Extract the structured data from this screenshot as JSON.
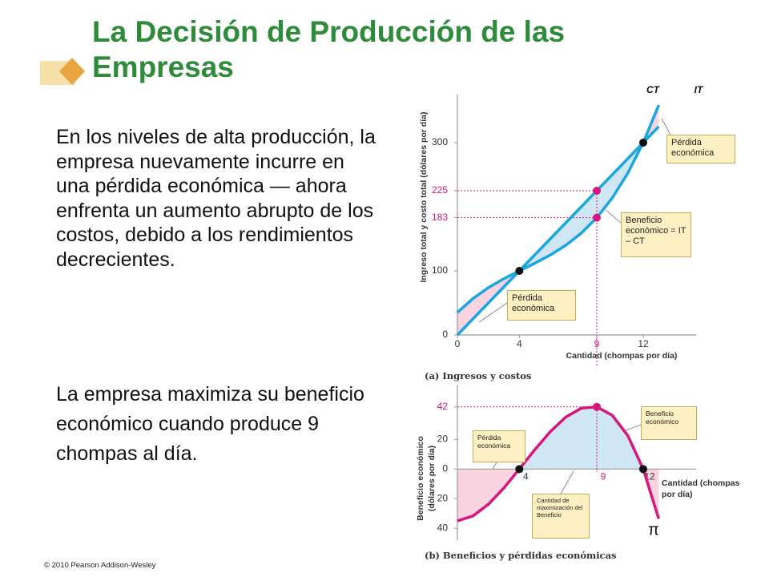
{
  "slide": {
    "title": "La Decisión de Producción de las Empresas",
    "paragraphs": [
      "En los niveles de alta producción, la empresa nuevamente incurre en una pérdida económica — ahora enfrenta un aumento abrupto de los costos, debido a los rendimientos decrecientes.",
      "La empresa maximiza su beneficio económico cuando produce 9 chompas al día."
    ],
    "copyright": "© 2010 Pearson Addison-Wesley"
  },
  "chart_data": [
    {
      "type": "line",
      "caption": "(a) Ingresos y costos",
      "xlabel": "Cantidad (chompas por día)",
      "ylabel": "Ingreso total y costo total (dólares por día)",
      "x": [
        0,
        1,
        2,
        3,
        4,
        5,
        6,
        7,
        8,
        9,
        10,
        11,
        12,
        13
      ],
      "series": [
        {
          "name": "CT",
          "color": "#1ba6e0",
          "values": [
            35,
            56.7,
            73.8,
            87.8,
            100,
            111.9,
            124.7,
            139.9,
            158.9,
            183,
            213.7,
            252.3,
            300,
            358.6
          ]
        },
        {
          "name": "IT",
          "color": "#1ba6e0",
          "values": [
            0,
            25,
            50,
            75,
            100,
            125,
            150,
            175,
            200,
            225,
            250,
            275,
            300,
            325
          ]
        }
      ],
      "xlim": [
        0,
        15
      ],
      "ylim": [
        0,
        375
      ],
      "xticks": [
        0,
        4,
        9,
        12
      ],
      "yticks": [
        0,
        100,
        183,
        225,
        300
      ],
      "annotations": [
        "Pérdida económica",
        "Beneficio económico = IT – CT",
        "Pérdida económica"
      ]
    },
    {
      "type": "line",
      "caption": "(b) Beneficios y pérdidas económicas",
      "xlabel": "Cantidad (chompas por día)",
      "ylabel": "Beneficio económico (dólares por día)",
      "x": [
        0,
        1,
        2,
        3,
        4,
        5,
        6,
        7,
        8,
        9,
        10,
        11,
        12,
        13
      ],
      "series": [
        {
          "name": "π",
          "color": "#d6177d",
          "values": [
            -35,
            -31.7,
            -23.8,
            -12.8,
            0,
            13.1,
            25.3,
            35.1,
            41.1,
            42,
            36.3,
            22.7,
            0,
            -33.6
          ]
        }
      ],
      "xlim": [
        0,
        15
      ],
      "ylim": [
        -48,
        57
      ],
      "xticks": [
        4,
        9,
        12
      ],
      "yticks": [
        {
          "value": -40,
          "label": "40"
        },
        {
          "value": -20,
          "label": "20"
        },
        0,
        20,
        42
      ],
      "annotations": [
        "Pérdida económica",
        "Beneficio económico",
        "Cantidad de maximización del Beneficio"
      ]
    }
  ]
}
